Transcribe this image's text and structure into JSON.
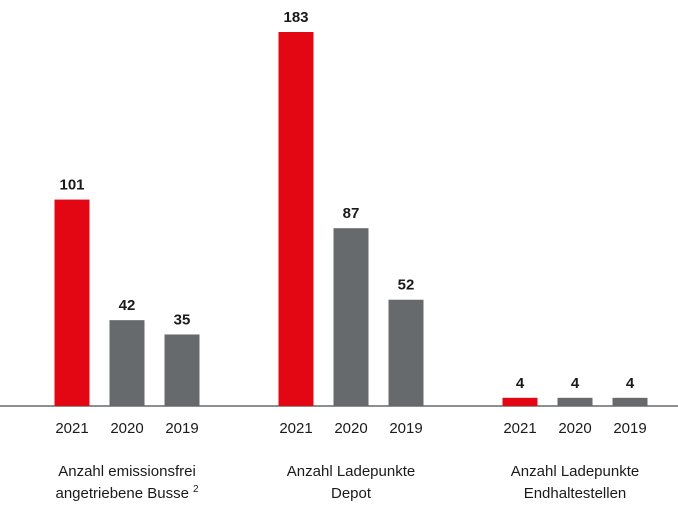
{
  "chart_data": {
    "type": "bar",
    "colors": [
      "#e30613",
      "#666a6d",
      "#666a6d"
    ],
    "groups": [
      {
        "label": [
          "Anzahl emissionsfrei",
          "angetriebene Busse"
        ],
        "note": "2",
        "categories": [
          "2021",
          "2020",
          "2019"
        ],
        "values": [
          101,
          42,
          35
        ]
      },
      {
        "label": [
          "Anzahl Ladepunkte",
          "Depot"
        ],
        "categories": [
          "2021",
          "2020",
          "2019"
        ],
        "values": [
          183,
          87,
          52
        ]
      },
      {
        "label": [
          "Anzahl Ladepunkte",
          "Endhaltestellen"
        ],
        "categories": [
          "2021",
          "2020",
          "2019"
        ],
        "values": [
          4,
          4,
          4
        ]
      }
    ]
  }
}
